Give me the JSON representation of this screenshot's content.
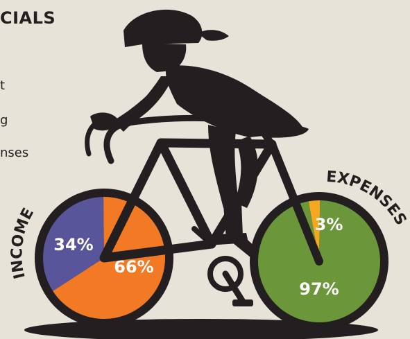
{
  "header": {
    "title_visible": "CIALS",
    "legend_fragments": [
      "t",
      "g",
      "nses"
    ]
  },
  "colors": {
    "background": "#e7e3d8",
    "silhouette": "#231f20",
    "income_34": "#58559a",
    "income_66": "#f27a25",
    "expenses_97": "#6b963a",
    "expenses_3": "#f5a81f"
  },
  "chart_data": [
    {
      "type": "pie",
      "title": "INCOME",
      "categories": [
        "",
        ""
      ],
      "values": [
        34,
        66
      ],
      "labels": [
        "34%",
        "66%"
      ],
      "colors": [
        "#58559a",
        "#f27a25"
      ]
    },
    {
      "type": "pie",
      "title": "EXPENSES",
      "categories": [
        "",
        ""
      ],
      "values": [
        3,
        97
      ],
      "labels": [
        "3%",
        "97%"
      ],
      "colors": [
        "#f5a81f",
        "#6b963a"
      ]
    }
  ]
}
